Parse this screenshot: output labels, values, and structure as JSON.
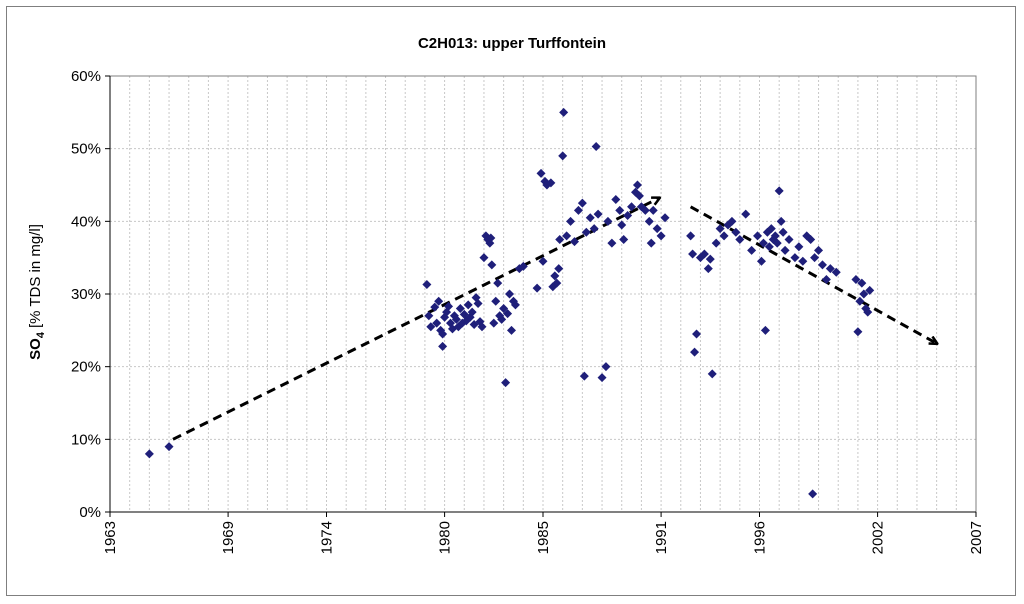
{
  "chart_data": {
    "type": "scatter",
    "title": "C2H013: upper Turffontein",
    "ylabel": {
      "main": "SO",
      "subscript": "4",
      "unit": "[% TDS in mg/l]"
    },
    "xlabel": "",
    "xlim": [
      1963,
      2007
    ],
    "ylim": [
      0,
      60
    ],
    "x_ticks": [
      1963,
      1969,
      1974,
      1980,
      1985,
      1991,
      1996,
      2002,
      2007
    ],
    "y_ticks": [
      {
        "value": 0,
        "label": "0%"
      },
      {
        "value": 10,
        "label": "10%"
      },
      {
        "value": 20,
        "label": "20%"
      },
      {
        "value": 30,
        "label": "30%"
      },
      {
        "value": 40,
        "label": "40%"
      },
      {
        "value": 50,
        "label": "50%"
      },
      {
        "value": 60,
        "label": "60%"
      }
    ],
    "grid": {
      "vertical_step_years": 1,
      "horizontal": true
    },
    "marker_color": "#1F1F7A",
    "series": [
      {
        "name": "SO4",
        "points": [
          [
            1965.0,
            8.0
          ],
          [
            1966.0,
            9.0
          ],
          [
            1979.1,
            31.3
          ],
          [
            1979.2,
            27.0
          ],
          [
            1979.3,
            25.5
          ],
          [
            1979.5,
            28.2
          ],
          [
            1979.6,
            26.0
          ],
          [
            1979.7,
            29.0
          ],
          [
            1979.8,
            25.0
          ],
          [
            1979.9,
            22.8
          ],
          [
            1979.9,
            24.5
          ],
          [
            1980.0,
            26.8
          ],
          [
            1980.1,
            27.5
          ],
          [
            1980.2,
            28.3
          ],
          [
            1980.3,
            26.0
          ],
          [
            1980.4,
            25.2
          ],
          [
            1980.5,
            27.0
          ],
          [
            1980.6,
            26.5
          ],
          [
            1980.7,
            25.5
          ],
          [
            1980.8,
            28.0
          ],
          [
            1980.9,
            26.0
          ],
          [
            1981.0,
            27.2
          ],
          [
            1981.1,
            26.3
          ],
          [
            1981.2,
            28.5
          ],
          [
            1981.3,
            26.8
          ],
          [
            1981.4,
            27.5
          ],
          [
            1981.5,
            25.8
          ],
          [
            1981.6,
            29.5
          ],
          [
            1981.7,
            28.7
          ],
          [
            1981.8,
            26.2
          ],
          [
            1981.9,
            25.5
          ],
          [
            1982.0,
            35.0
          ],
          [
            1982.1,
            38.0
          ],
          [
            1982.2,
            37.5
          ],
          [
            1982.3,
            37.0
          ],
          [
            1982.35,
            37.7
          ],
          [
            1982.4,
            34.0
          ],
          [
            1982.5,
            26.0
          ],
          [
            1982.6,
            29.0
          ],
          [
            1982.7,
            31.5
          ],
          [
            1982.8,
            27.0
          ],
          [
            1982.9,
            26.5
          ],
          [
            1983.0,
            28.0
          ],
          [
            1983.1,
            17.8
          ],
          [
            1983.2,
            27.3
          ],
          [
            1983.3,
            30.0
          ],
          [
            1983.4,
            25.0
          ],
          [
            1983.5,
            29.0
          ],
          [
            1983.6,
            28.5
          ],
          [
            1983.8,
            33.5
          ],
          [
            1984.0,
            33.8
          ],
          [
            1984.7,
            30.8
          ],
          [
            1984.9,
            46.6
          ],
          [
            1985.0,
            34.5
          ],
          [
            1985.1,
            45.5
          ],
          [
            1985.2,
            45.0
          ],
          [
            1985.4,
            45.3
          ],
          [
            1985.5,
            31.0
          ],
          [
            1985.6,
            32.5
          ],
          [
            1985.7,
            31.5
          ],
          [
            1985.8,
            33.5
          ],
          [
            1985.85,
            37.5
          ],
          [
            1986.0,
            49.0
          ],
          [
            1986.05,
            55.0
          ],
          [
            1986.2,
            38.0
          ],
          [
            1986.4,
            40.0
          ],
          [
            1986.6,
            37.2
          ],
          [
            1986.8,
            41.5
          ],
          [
            1987.0,
            42.5
          ],
          [
            1987.1,
            18.7
          ],
          [
            1987.2,
            38.5
          ],
          [
            1987.4,
            40.5
          ],
          [
            1987.6,
            39.0
          ],
          [
            1987.7,
            50.3
          ],
          [
            1987.8,
            41.0
          ],
          [
            1988.0,
            18.5
          ],
          [
            1988.2,
            20.0
          ],
          [
            1988.3,
            40.0
          ],
          [
            1988.5,
            37.0
          ],
          [
            1988.7,
            43.0
          ],
          [
            1988.9,
            41.5
          ],
          [
            1989.0,
            39.5
          ],
          [
            1989.1,
            37.5
          ],
          [
            1989.3,
            40.8
          ],
          [
            1989.5,
            42.0
          ],
          [
            1989.7,
            44.0
          ],
          [
            1989.8,
            45.0
          ],
          [
            1989.9,
            43.5
          ],
          [
            1990.0,
            42.0
          ],
          [
            1990.2,
            41.5
          ],
          [
            1990.4,
            40.0
          ],
          [
            1990.5,
            37.0
          ],
          [
            1990.6,
            41.5
          ],
          [
            1990.8,
            39.0
          ],
          [
            1991.0,
            38.0
          ],
          [
            1991.2,
            40.5
          ],
          [
            1992.5,
            38.0
          ],
          [
            1992.6,
            35.5
          ],
          [
            1992.7,
            22.0
          ],
          [
            1992.8,
            24.5
          ],
          [
            1993.0,
            35.0
          ],
          [
            1993.2,
            35.5
          ],
          [
            1993.4,
            33.5
          ],
          [
            1993.5,
            34.8
          ],
          [
            1993.6,
            19.0
          ],
          [
            1993.8,
            37.0
          ],
          [
            1994.0,
            39.0
          ],
          [
            1994.2,
            38.0
          ],
          [
            1994.4,
            39.5
          ],
          [
            1994.6,
            40.0
          ],
          [
            1994.8,
            38.5
          ],
          [
            1995.0,
            37.5
          ],
          [
            1995.3,
            41.0
          ],
          [
            1995.6,
            36.0
          ],
          [
            1995.9,
            38.0
          ],
          [
            1996.1,
            34.5
          ],
          [
            1996.2,
            37.0
          ],
          [
            1996.3,
            25.0
          ],
          [
            1996.4,
            38.5
          ],
          [
            1996.5,
            36.5
          ],
          [
            1996.6,
            39.0
          ],
          [
            1996.7,
            37.5
          ],
          [
            1996.8,
            38.0
          ],
          [
            1996.9,
            37.0
          ],
          [
            1997.0,
            44.2
          ],
          [
            1997.1,
            40.0
          ],
          [
            1997.2,
            38.5
          ],
          [
            1997.3,
            36.0
          ],
          [
            1997.5,
            37.5
          ],
          [
            1997.8,
            35.0
          ],
          [
            1998.0,
            36.5
          ],
          [
            1998.2,
            34.5
          ],
          [
            1998.4,
            38.0
          ],
          [
            1998.6,
            37.5
          ],
          [
            1998.7,
            2.5
          ],
          [
            1998.8,
            35.0
          ],
          [
            1999.0,
            36.0
          ],
          [
            1999.2,
            34.0
          ],
          [
            1999.4,
            32.0
          ],
          [
            1999.6,
            33.5
          ],
          [
            1999.9,
            33.0
          ],
          [
            2000.9,
            32.0
          ],
          [
            2001.0,
            24.8
          ],
          [
            2001.1,
            29.0
          ],
          [
            2001.2,
            31.5
          ],
          [
            2001.3,
            30.0
          ],
          [
            2001.4,
            28.0
          ],
          [
            2001.5,
            27.5
          ],
          [
            2001.6,
            30.5
          ]
        ]
      }
    ],
    "trend_arrows": [
      {
        "from": [
          1966.2,
          10.0
        ],
        "to": [
          1990.9,
          43.2
        ]
      },
      {
        "from": [
          1992.5,
          42.0
        ],
        "to": [
          2005.0,
          23.2
        ]
      }
    ]
  }
}
